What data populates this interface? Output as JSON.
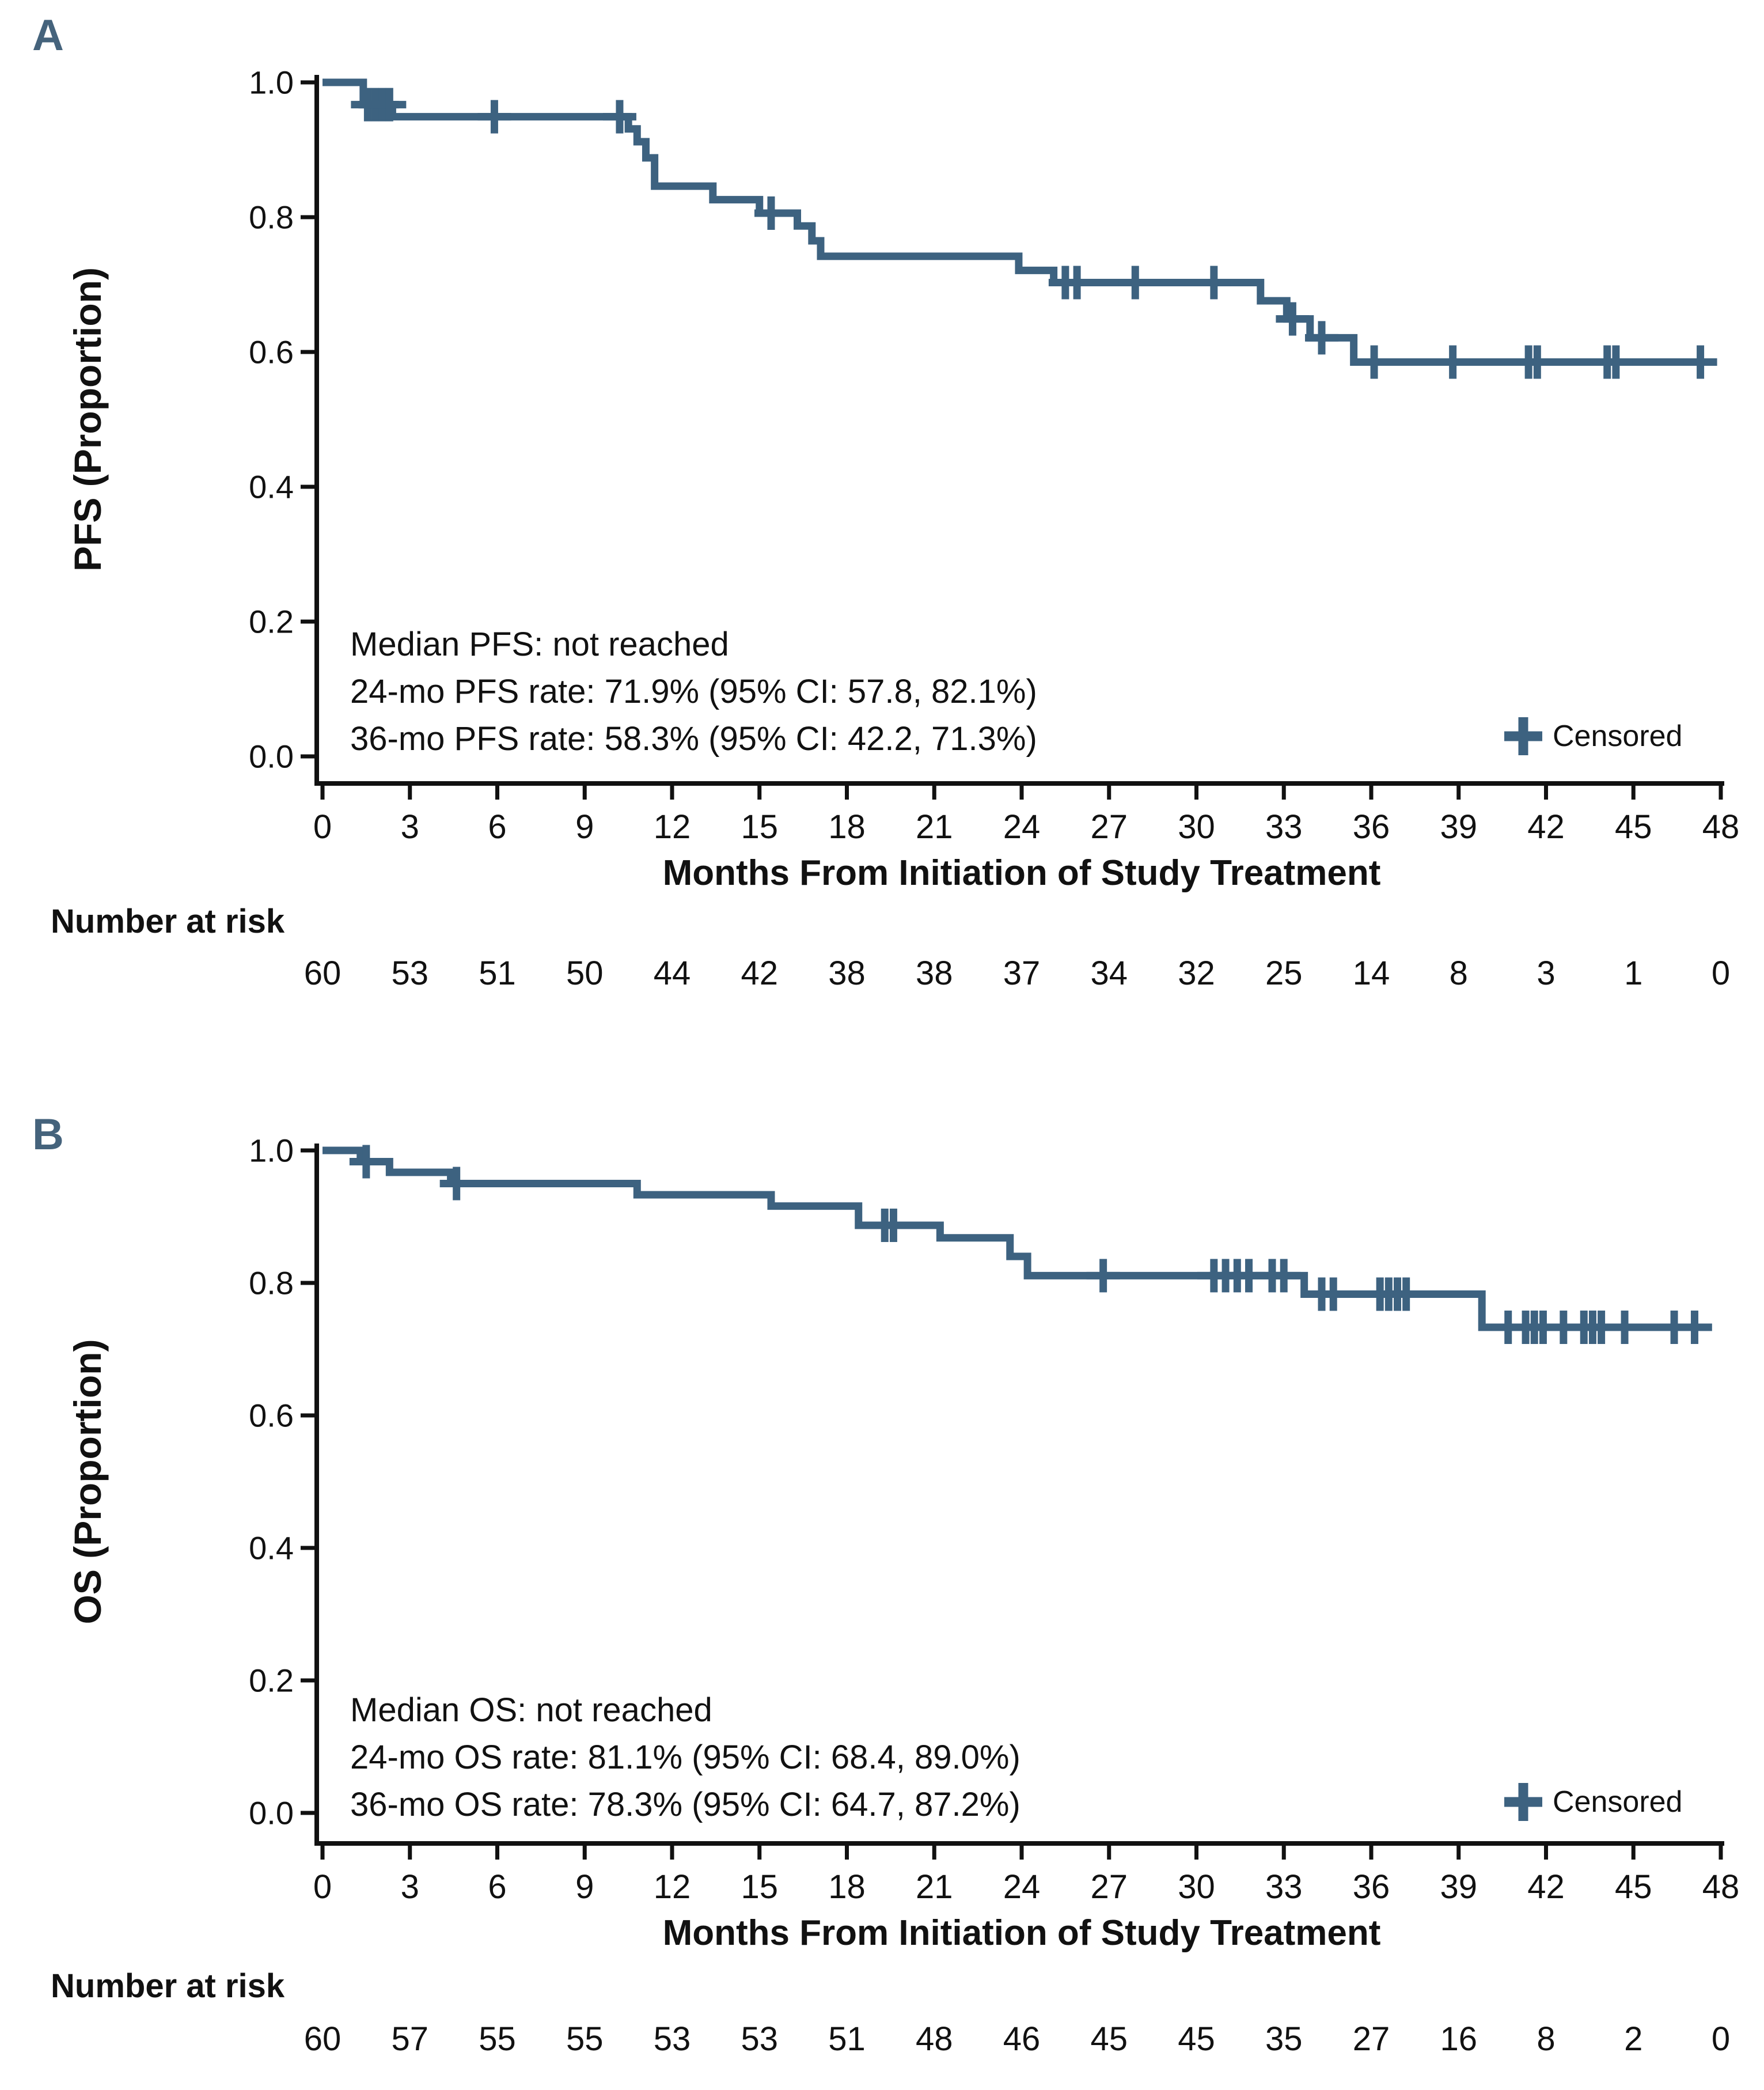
{
  "style": {
    "curve_color": "#3d6280",
    "panel_label_color": "#45637c",
    "axis_color": "#111111"
  },
  "panels": [
    {
      "label": "A",
      "y_axis_title": "PFS (Proportion)",
      "x_axis_title": "Months From Initiation of Study Treatment",
      "y_tick_labels": [
        "1.0",
        "0.8",
        "0.6",
        "0.4",
        "0.2",
        "0.0"
      ],
      "x_tick_labels": [
        "0",
        "3",
        "6",
        "9",
        "12",
        "15",
        "18",
        "21",
        "24",
        "27",
        "30",
        "33",
        "36",
        "39",
        "42",
        "45",
        "48"
      ],
      "annotation": {
        "line1": "Median PFS: not reached",
        "line2": "24-mo PFS rate: 71.9% (95% CI: 57.8, 82.1%)",
        "line3": "36-mo PFS rate: 58.3% (95% CI: 42.2, 71.3%)"
      },
      "legend_label": "Censored",
      "number_at_risk_label": "Number at risk",
      "number_at_risk": [
        "60",
        "53",
        "51",
        "50",
        "44",
        "42",
        "38",
        "38",
        "37",
        "34",
        "32",
        "25",
        "14",
        "8",
        "3",
        "1",
        "0"
      ]
    },
    {
      "label": "B",
      "y_axis_title": "OS (Proportion)",
      "x_axis_title": "Months From Initiation of Study Treatment",
      "y_tick_labels": [
        "1.0",
        "0.8",
        "0.6",
        "0.4",
        "0.2",
        "0.0"
      ],
      "x_tick_labels": [
        "0",
        "3",
        "6",
        "9",
        "12",
        "15",
        "18",
        "21",
        "24",
        "27",
        "30",
        "33",
        "36",
        "39",
        "42",
        "45",
        "48"
      ],
      "annotation": {
        "line1": "Median OS: not reached",
        "line2": "24-mo OS rate: 81.1% (95% CI: 68.4, 89.0%)",
        "line3": "36-mo OS rate: 78.3% (95% CI: 64.7, 87.2%)"
      },
      "legend_label": "Censored",
      "number_at_risk_label": "Number at risk",
      "number_at_risk": [
        "60",
        "57",
        "55",
        "55",
        "53",
        "53",
        "51",
        "48",
        "46",
        "45",
        "45",
        "35",
        "27",
        "16",
        "8",
        "2",
        "0"
      ]
    }
  ],
  "chart_data": [
    {
      "type": "line",
      "subtype": "kaplan_meier_step",
      "series_name": "PFS",
      "title": "",
      "xlabel": "Months From Initiation of Study Treatment",
      "ylabel": "PFS (Proportion)",
      "xlim": [
        0,
        48
      ],
      "ylim": [
        0.0,
        1.0
      ],
      "xticks": [
        0,
        3,
        6,
        9,
        12,
        15,
        18,
        21,
        24,
        27,
        30,
        33,
        36,
        39,
        42,
        45,
        48
      ],
      "yticks": [
        1.0,
        0.8,
        0.6,
        0.4,
        0.2,
        0.0
      ],
      "grid": false,
      "color": "#3d6280",
      "median": "not reached",
      "rate_24mo": {
        "value": 71.9,
        "ci_low": 57.8,
        "ci_high": 82.1
      },
      "rate_36mo": {
        "value": 58.3,
        "ci_low": 42.2,
        "ci_high": 71.3
      },
      "steps": [
        [
          0,
          1.0
        ],
        [
          1.4,
          0.967
        ],
        [
          2.4,
          0.949
        ],
        [
          10.5,
          0.931
        ],
        [
          10.8,
          0.912
        ],
        [
          11.1,
          0.888
        ],
        [
          11.4,
          0.846
        ],
        [
          13.4,
          0.826
        ],
        [
          15.0,
          0.806
        ],
        [
          16.3,
          0.787
        ],
        [
          16.8,
          0.765
        ],
        [
          17.1,
          0.742
        ],
        [
          23.9,
          0.721
        ],
        [
          25.1,
          0.703
        ],
        [
          32.2,
          0.676
        ],
        [
          33.1,
          0.649
        ],
        [
          33.9,
          0.621
        ],
        [
          35.4,
          0.585
        ]
      ],
      "end_time": 47.7,
      "censor_marks": [
        [
          1.55,
          0.967
        ],
        [
          1.8,
          0.967
        ],
        [
          2.05,
          0.967
        ],
        [
          2.3,
          0.967
        ],
        [
          5.9,
          0.949
        ],
        [
          10.2,
          0.949
        ],
        [
          15.4,
          0.806
        ],
        [
          25.5,
          0.703
        ],
        [
          25.9,
          0.703
        ],
        [
          27.9,
          0.703
        ],
        [
          30.6,
          0.703
        ],
        [
          33.3,
          0.649
        ],
        [
          34.3,
          0.621
        ],
        [
          36.1,
          0.585
        ],
        [
          38.8,
          0.585
        ],
        [
          41.4,
          0.585
        ],
        [
          41.7,
          0.585
        ],
        [
          44.1,
          0.585
        ],
        [
          44.4,
          0.585
        ],
        [
          47.3,
          0.585
        ]
      ],
      "number_at_risk": {
        "times": [
          0,
          3,
          6,
          9,
          12,
          15,
          18,
          21,
          24,
          27,
          30,
          33,
          36,
          39,
          42,
          45,
          48
        ],
        "counts": [
          60,
          53,
          51,
          50,
          44,
          42,
          38,
          38,
          37,
          34,
          32,
          25,
          14,
          8,
          3,
          1,
          0
        ]
      },
      "legend": {
        "label": "Censored",
        "position": "bottom-right"
      }
    },
    {
      "type": "line",
      "subtype": "kaplan_meier_step",
      "series_name": "OS",
      "title": "",
      "xlabel": "Months From Initiation of Study Treatment",
      "ylabel": "OS (Proportion)",
      "xlim": [
        0,
        48
      ],
      "ylim": [
        0.0,
        1.0
      ],
      "xticks": [
        0,
        3,
        6,
        9,
        12,
        15,
        18,
        21,
        24,
        27,
        30,
        33,
        36,
        39,
        42,
        45,
        48
      ],
      "yticks": [
        1.0,
        0.8,
        0.6,
        0.4,
        0.2,
        0.0
      ],
      "grid": false,
      "color": "#3d6280",
      "median": "not reached",
      "rate_24mo": {
        "value": 81.1,
        "ci_low": 68.4,
        "ci_high": 89.0
      },
      "rate_36mo": {
        "value": 78.3,
        "ci_low": 64.7,
        "ci_high": 87.2
      },
      "steps": [
        [
          0,
          1.0
        ],
        [
          1.3,
          0.983
        ],
        [
          2.3,
          0.967
        ],
        [
          4.4,
          0.95
        ],
        [
          10.8,
          0.933
        ],
        [
          15.4,
          0.916
        ],
        [
          18.4,
          0.887
        ],
        [
          21.2,
          0.868
        ],
        [
          23.6,
          0.84
        ],
        [
          24.2,
          0.811
        ],
        [
          33.7,
          0.783
        ],
        [
          39.8,
          0.733
        ]
      ],
      "end_time": 47.7,
      "censor_marks": [
        [
          1.5,
          0.983
        ],
        [
          4.6,
          0.95
        ],
        [
          19.3,
          0.887
        ],
        [
          19.6,
          0.887
        ],
        [
          26.8,
          0.811
        ],
        [
          30.6,
          0.811
        ],
        [
          31.0,
          0.811
        ],
        [
          31.4,
          0.811
        ],
        [
          31.8,
          0.811
        ],
        [
          32.6,
          0.811
        ],
        [
          33.0,
          0.811
        ],
        [
          34.3,
          0.783
        ],
        [
          34.7,
          0.783
        ],
        [
          36.3,
          0.783
        ],
        [
          36.6,
          0.783
        ],
        [
          36.9,
          0.783
        ],
        [
          37.2,
          0.783
        ],
        [
          40.7,
          0.733
        ],
        [
          41.3,
          0.733
        ],
        [
          41.6,
          0.733
        ],
        [
          41.9,
          0.733
        ],
        [
          42.6,
          0.733
        ],
        [
          43.3,
          0.733
        ],
        [
          43.6,
          0.733
        ],
        [
          43.9,
          0.733
        ],
        [
          44.7,
          0.733
        ],
        [
          46.4,
          0.733
        ],
        [
          47.1,
          0.733
        ]
      ],
      "number_at_risk": {
        "times": [
          0,
          3,
          6,
          9,
          12,
          15,
          18,
          21,
          24,
          27,
          30,
          33,
          36,
          39,
          42,
          45,
          48
        ],
        "counts": [
          60,
          57,
          55,
          55,
          53,
          53,
          51,
          48,
          46,
          45,
          45,
          35,
          27,
          16,
          8,
          2,
          0
        ]
      },
      "legend": {
        "label": "Censored",
        "position": "bottom-right"
      }
    }
  ]
}
